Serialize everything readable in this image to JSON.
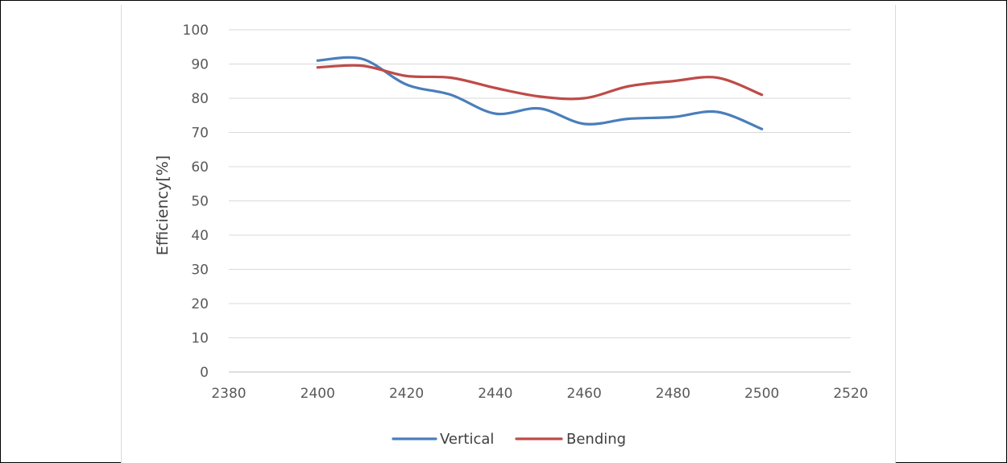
{
  "chart_data": {
    "type": "line",
    "xlabel": "",
    "ylabel": "Efficiency[%]",
    "xlim": [
      2380,
      2520
    ],
    "ylim": [
      0,
      100
    ],
    "x_ticks": [
      2380,
      2400,
      2420,
      2440,
      2460,
      2480,
      2500,
      2520
    ],
    "y_ticks": [
      0,
      10,
      20,
      30,
      40,
      50,
      60,
      70,
      80,
      90,
      100
    ],
    "x_tick_labels": [
      "2380",
      "2400",
      "2420",
      "2440",
      "2460",
      "2480",
      "2500",
      "2520"
    ],
    "y_tick_labels": [
      "0",
      "10",
      "20",
      "30",
      "40",
      "50",
      "60",
      "70",
      "80",
      "90",
      "100"
    ],
    "grid": true,
    "legend_position": "bottom",
    "x": [
      2400,
      2410,
      2420,
      2430,
      2440,
      2450,
      2460,
      2470,
      2480,
      2490,
      2500
    ],
    "series": [
      {
        "name": "Vertical",
        "color": "#4a7ebb",
        "values": [
          91,
          91.5,
          84,
          81,
          75.5,
          77,
          72.5,
          74,
          74.5,
          76,
          71
        ]
      },
      {
        "name": "Bending",
        "color": "#be4b48",
        "values": [
          89,
          89.5,
          86.5,
          86,
          83,
          80.5,
          80,
          83.5,
          85,
          86,
          81
        ]
      }
    ]
  }
}
